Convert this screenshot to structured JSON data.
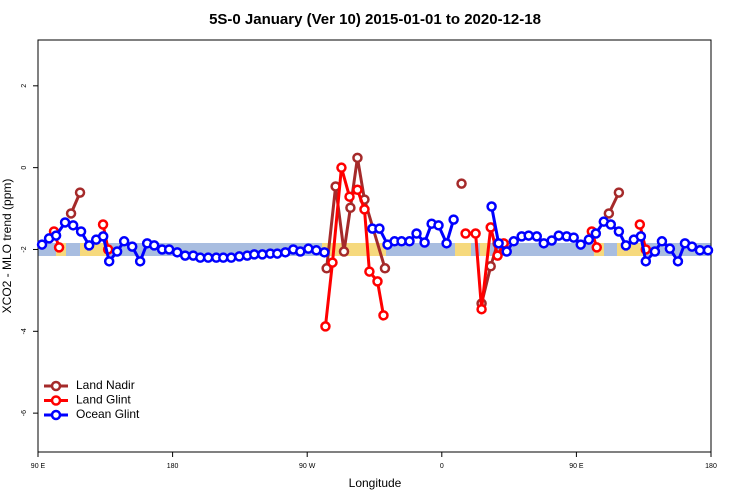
{
  "chart_data": {
    "type": "line",
    "title": "5S-0 January (Ver 10)   2015-01-01 to 2020-12-18",
    "xlabel": "Longitude",
    "ylabel": "XCO2 - MLO trend (ppm)",
    "xlim": [
      90,
      540
    ],
    "ylim": [
      -6.95,
      3.12
    ],
    "xticks": [
      {
        "value": 90,
        "label": "90 E"
      },
      180,
      {
        "value": 270,
        "label": "90 W"
      },
      {
        "value": 360,
        "label": "0"
      },
      {
        "value": 450,
        "label": "90 E"
      },
      {
        "value": 540,
        "label": "180"
      }
    ],
    "yticks": [
      -6,
      -4,
      -2,
      0,
      2
    ],
    "legend": "bottomleft",
    "series": [
      {
        "name": "Land Nadir",
        "color": "#a52a2a",
        "x": [
          112.1,
          118.1,
          200,
          283.0,
          289.0,
          294.6,
          298.9,
          303.6,
          308.3,
          322.0,
          350,
          373.2,
          380,
          386.6,
          392.7,
          397.3,
          430,
          471.7,
          478.4
        ],
        "values": [
          -1.12,
          -0.61,
          null,
          -2.46,
          -0.46,
          -2.05,
          -0.98,
          0.24,
          -0.78,
          -2.46,
          null,
          -0.39,
          null,
          -3.32,
          -2.41,
          -1.85,
          null,
          -1.12,
          -0.61
        ]
      },
      {
        "name": "Land Glint",
        "color": "#ff0000",
        "x": [
          100.7,
          104.1,
          120,
          133.5,
          136.9,
          200,
          282.2,
          286.9,
          292.9,
          298.3,
          303.6,
          308.3,
          311.6,
          317.0,
          321.0,
          350,
          375.9,
          382.6,
          386.6,
          392.7,
          397.3,
          401.4,
          430,
          460.3,
          463.6,
          480,
          492.4,
          496.4
        ],
        "values": [
          -1.56,
          -1.95,
          null,
          -1.39,
          -2.0,
          null,
          -3.88,
          -2.32,
          0,
          -0.71,
          -0.54,
          -1.02,
          -2.54,
          -2.78,
          -3.61,
          null,
          -1.61,
          -1.61,
          -3.46,
          -1.46,
          -2.15,
          -1.85,
          null,
          -1.56,
          -1.95,
          null,
          -1.39,
          -2.0
        ]
      },
      {
        "name": "Ocean Glint",
        "color": "#0000ff",
        "x": [
          92.7,
          97.4,
          102.1,
          108.1,
          113.5,
          118.8,
          124.2,
          128.9,
          133.6,
          137.6,
          142.9,
          147.6,
          153.0,
          158.3,
          163.0,
          167.7,
          173.0,
          177.7,
          183.1,
          188.4,
          193.8,
          198.5,
          203.8,
          209.2,
          213.9,
          219.2,
          224.6,
          229.9,
          234.6,
          240.0,
          245.3,
          250.0,
          255.4,
          260.7,
          265.4,
          270.8,
          276.1,
          281.5,
          297,
          313.6,
          318.3,
          323.7,
          328.4,
          333.1,
          338.4,
          343.1,
          348.5,
          353.2,
          357.8,
          363.2,
          367.9,
          380,
          393.3,
          398.0,
          403.4,
          408.1,
          413.4,
          418.1,
          423.5,
          428.2,
          433.5,
          438.2,
          443.5,
          448.2,
          452.9,
          458.3,
          463.0,
          468.3,
          473.0,
          478.4,
          483.1,
          488.4,
          493.1,
          496.4,
          502.5,
          507.2,
          512.5,
          517.9,
          522.6,
          527.3,
          532.6,
          538.0
        ],
        "values": [
          -1.88,
          -1.73,
          -1.66,
          -1.34,
          -1.41,
          -1.56,
          -1.9,
          -1.76,
          -1.68,
          -2.29,
          -2.05,
          -1.8,
          -1.93,
          -2.29,
          -1.85,
          -1.9,
          -2.0,
          -2.0,
          -2.07,
          -2.15,
          -2.15,
          -2.2,
          -2.2,
          -2.2,
          -2.2,
          -2.2,
          -2.17,
          -2.15,
          -2.12,
          -2.12,
          -2.1,
          -2.1,
          -2.07,
          -2.0,
          -2.05,
          -1.98,
          -2.02,
          -2.07,
          null,
          -1.49,
          -1.49,
          -1.88,
          -1.8,
          -1.8,
          -1.8,
          -1.61,
          -1.83,
          -1.37,
          -1.41,
          -1.85,
          -1.27,
          null,
          -0.95,
          -1.85,
          -2.05,
          -1.8,
          -1.68,
          -1.66,
          -1.68,
          -1.85,
          -1.78,
          -1.66,
          -1.68,
          -1.71,
          -1.88,
          -1.76,
          -1.61,
          -1.32,
          -1.39,
          -1.56,
          -1.9,
          -1.76,
          -1.68,
          -2.29,
          -2.05,
          -1.8,
          -1.98,
          -2.29,
          -1.85,
          -1.93,
          -2.02,
          -2.02
        ]
      }
    ]
  }
}
